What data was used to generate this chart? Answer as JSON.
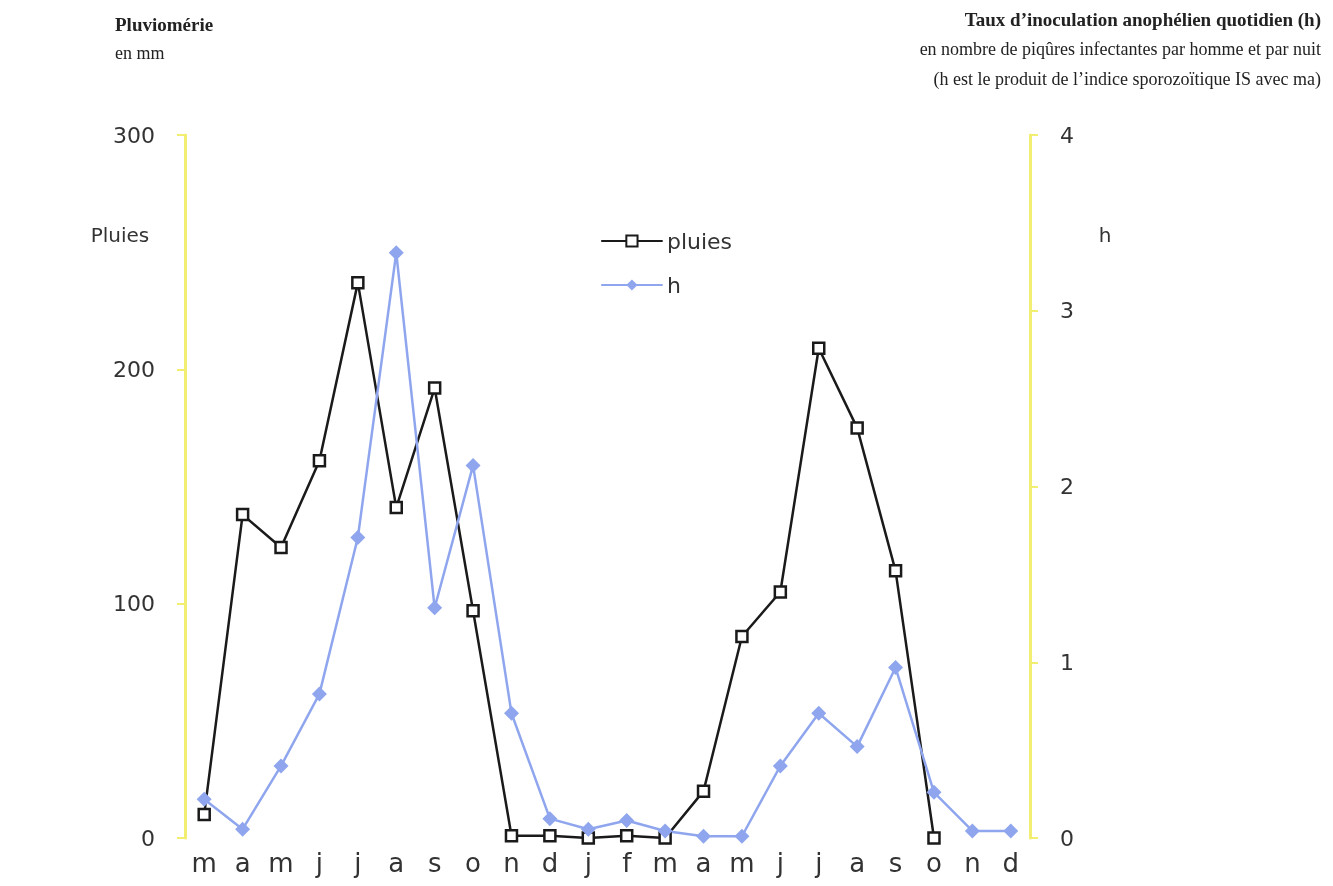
{
  "chart_data": {
    "type": "line",
    "title": "Pluviomérie",
    "subtitle": "en mm",
    "ylabel": "Pluies",
    "y2label": "h",
    "annotations": [
      "Taux d’inoculation anophélien quotidien (h)",
      "en nombre de piqûres infectantes par homme et par nuit",
      "(h est le produit de l’indice sporozoïtique IS avec ma)"
    ],
    "categories": [
      "m",
      "a",
      "m",
      "j",
      "j",
      "a",
      "s",
      "o",
      "n",
      "d",
      "j",
      "f",
      "m",
      "a",
      "m",
      "j",
      "j",
      "a",
      "s",
      "o",
      "n",
      "d"
    ],
    "series": [
      {
        "name": "pluies",
        "color": "#1a1a1a",
        "marker": "square",
        "values": [
          10,
          138,
          124,
          161,
          237,
          141,
          192,
          97,
          1,
          1,
          0,
          1,
          0,
          20,
          86,
          105,
          209,
          175,
          114,
          0,
          null,
          null
        ]
      },
      {
        "name": "h",
        "color": "#8fa6ee",
        "marker": "diamond",
        "axis": "y2",
        "values": [
          0.22,
          0.05,
          0.41,
          0.82,
          1.71,
          3.33,
          1.31,
          2.12,
          0.71,
          0.11,
          0.05,
          0.1,
          0.04,
          0.01,
          0.01,
          0.41,
          0.71,
          0.52,
          0.97,
          0.26,
          0.04,
          0.04
        ]
      }
    ],
    "ylim": [
      0,
      300
    ],
    "yticks": [
      0,
      100,
      200,
      300
    ],
    "y2lim": [
      0,
      4
    ],
    "y2ticks": [
      0,
      1,
      2,
      3,
      4
    ],
    "grid": false,
    "legend": "top"
  }
}
